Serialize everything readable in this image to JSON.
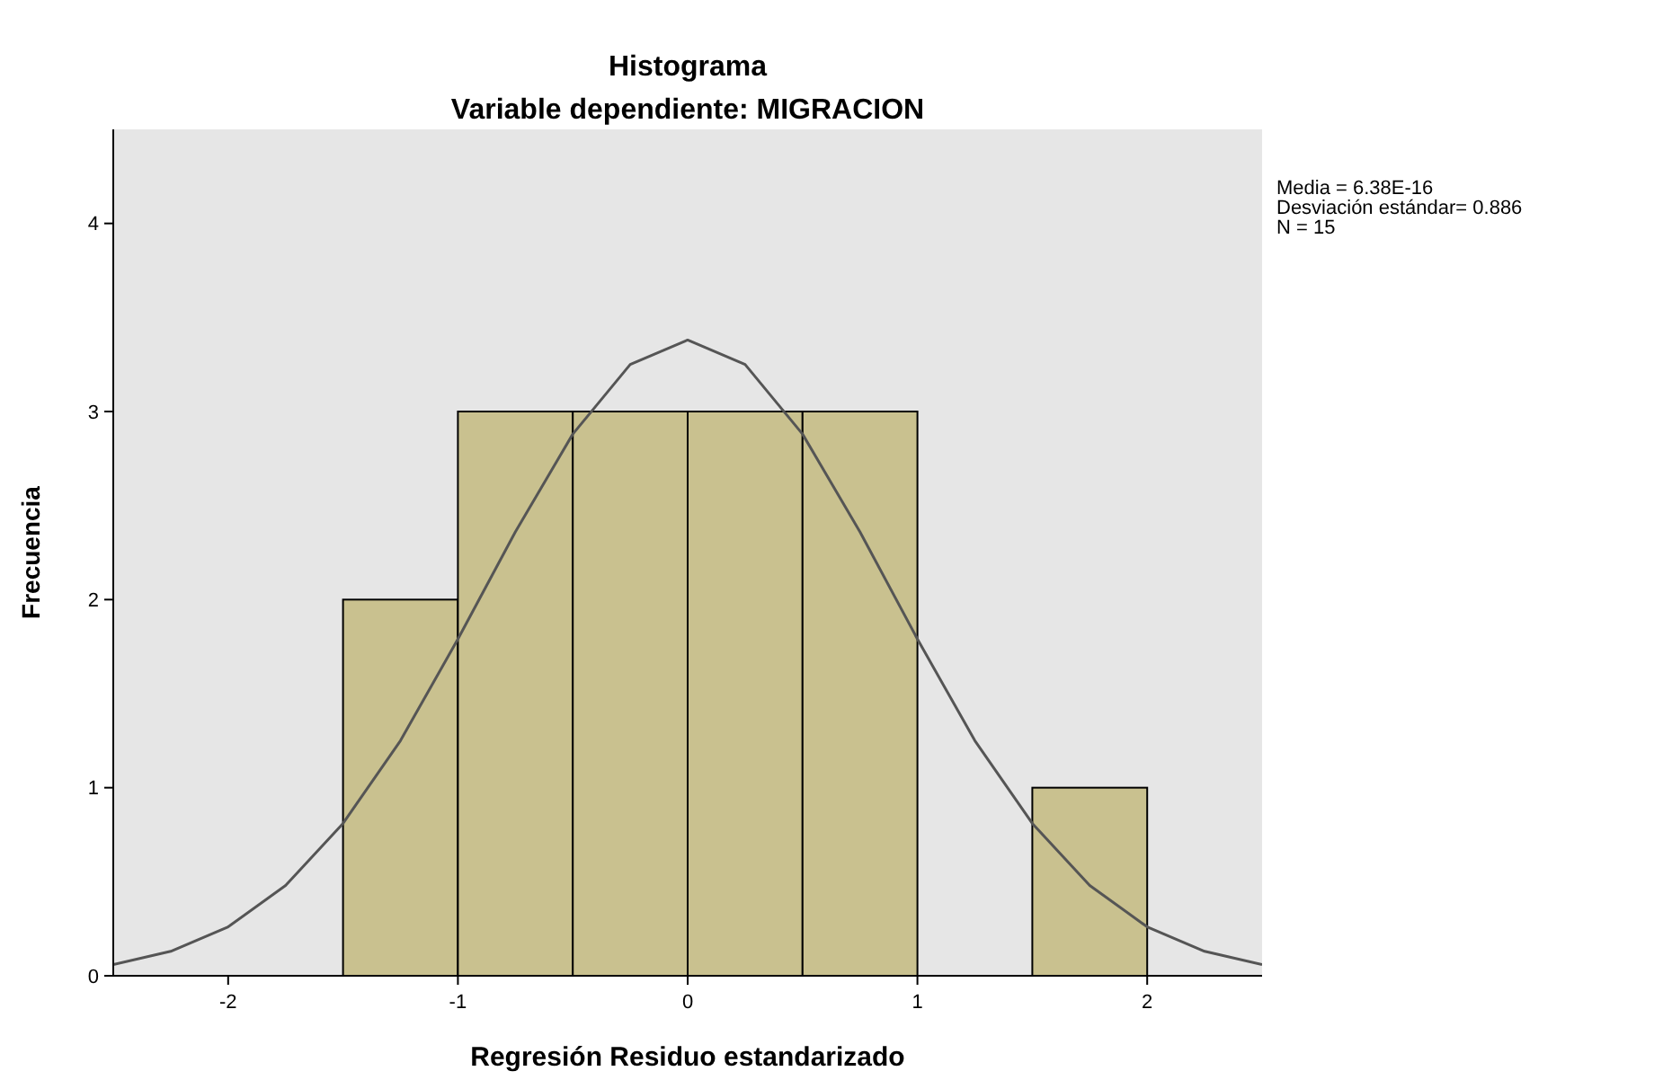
{
  "chart_data": {
    "type": "histogram",
    "title": "Histograma",
    "subtitle": "Variable dependiente: MIGRACION",
    "xlabel": "Regresión Residuo estandarizado",
    "ylabel": "Frecuencia",
    "bins": [
      -1.5,
      -1,
      -0.5,
      0,
      0.5,
      1,
      1.5,
      2
    ],
    "values": [
      2,
      3,
      3,
      3,
      3,
      0,
      1
    ],
    "color": "#c9c18f",
    "series": [
      {
        "type": "line",
        "color": "#555555",
        "x": [
          -2.5,
          -2.25,
          -2,
          -1.75,
          -1.5,
          -1.25,
          -1,
          -0.75,
          -0.5,
          -0.25,
          0,
          0.25,
          0.5,
          0.75,
          1,
          1.25,
          1.5,
          1.75,
          2,
          2.25,
          2.5
        ],
        "values": [
          0.06,
          0.13,
          0.26,
          0.48,
          0.81,
          1.25,
          1.79,
          2.36,
          2.88,
          3.25,
          3.38,
          3.25,
          2.88,
          2.36,
          1.79,
          1.25,
          0.81,
          0.48,
          0.26,
          0.13,
          0.06
        ]
      }
    ],
    "xlim": [
      -2.5,
      2.5
    ],
    "xticks": [
      -2,
      -1,
      0,
      1,
      2
    ],
    "ylim": [
      0,
      4.5
    ],
    "yticks": [
      0,
      1,
      2,
      3,
      4
    ],
    "grid": false,
    "annotations": [
      "Media = 6.38E-16",
      "Desviación estándar= 0.886",
      "N = 15"
    ]
  }
}
